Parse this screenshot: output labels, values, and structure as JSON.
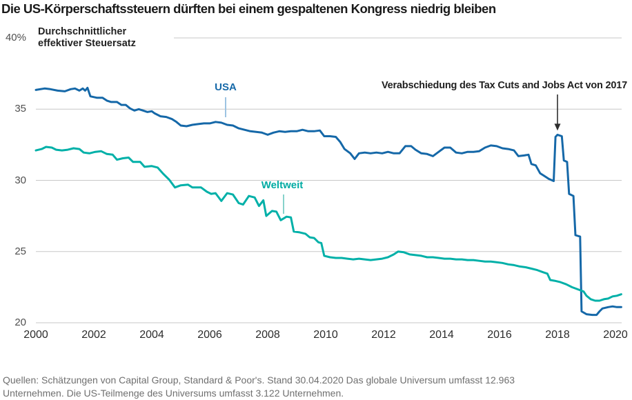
{
  "title": "Die US-Körperschaftssteuern dürften bei einem gespaltenen Kongress niedrig bleiben",
  "footer_lines": [
    "Quellen: Schätzungen von Capital Group, Standard & Poor's. Stand 30.04.2020 Das globale Universum umfasst 12.963",
    "Unternehmen. Die US-Teilmenge des Universums umfasst 3.122 Unternehmen."
  ],
  "colors": {
    "usa_line": "#1568a8",
    "world_line": "#00b0a8",
    "usa_label": "#1568a8",
    "world_label": "#00aba3",
    "usa_leader": "#9cc3e2",
    "world_leader": "#86d2cb",
    "grid": "#c7c7c7",
    "title_text": "#1a1a1a",
    "ytick_text": "#4f4f4f",
    "xtick_text": "#2b2b2b",
    "annotation_text": "#1f1f1f",
    "arrow": "#2e2e2e",
    "footer_text": "#6f6f6f"
  },
  "chart_data": {
    "type": "line",
    "title": "Die US-Körperschaftssteuern dürften bei einem gespaltenen Kongress niedrig bleiben",
    "xlabel": "",
    "ylabel": "Durchschnittlicher effektiver Steuersatz",
    "ylabel_lines": [
      "Durchschnittlicher",
      "effektiver Steuersatz"
    ],
    "xlim": [
      2000,
      2020.2
    ],
    "ylim": [
      20,
      40
    ],
    "grid": "horizontal",
    "legend_position": "inline-labels",
    "y_ticks": [
      {
        "value": 40,
        "label": "40%"
      },
      {
        "value": 35,
        "label": "35"
      },
      {
        "value": 30,
        "label": "30"
      },
      {
        "value": 25,
        "label": "25"
      },
      {
        "value": 20,
        "label": "20"
      }
    ],
    "x_ticks": [
      2000,
      2002,
      2004,
      2006,
      2008,
      2010,
      2012,
      2014,
      2016,
      2018,
      2020
    ],
    "annotation": {
      "text": "Verabschiedung des Tax Cuts and Jobs Act von 2017",
      "arrow_year": 2018,
      "points_to_value": 33.2
    },
    "series": [
      {
        "name": "USA",
        "color": "#1568a8",
        "points": [
          [
            2000.0,
            36.35
          ],
          [
            2000.3,
            36.45
          ],
          [
            2000.5,
            36.4
          ],
          [
            2000.75,
            36.3
          ],
          [
            2001.0,
            36.25
          ],
          [
            2001.2,
            36.4
          ],
          [
            2001.35,
            36.45
          ],
          [
            2001.5,
            36.3
          ],
          [
            2001.62,
            36.45
          ],
          [
            2001.7,
            36.3
          ],
          [
            2001.78,
            36.5
          ],
          [
            2001.88,
            35.9
          ],
          [
            2002.1,
            35.8
          ],
          [
            2002.3,
            35.8
          ],
          [
            2002.45,
            35.6
          ],
          [
            2002.6,
            35.5
          ],
          [
            2002.8,
            35.5
          ],
          [
            2002.95,
            35.3
          ],
          [
            2003.1,
            35.3
          ],
          [
            2003.25,
            35.05
          ],
          [
            2003.4,
            34.9
          ],
          [
            2003.55,
            35.0
          ],
          [
            2003.7,
            34.9
          ],
          [
            2003.85,
            34.8
          ],
          [
            2004.0,
            34.85
          ],
          [
            2004.1,
            34.7
          ],
          [
            2004.3,
            34.5
          ],
          [
            2004.5,
            34.45
          ],
          [
            2004.7,
            34.3
          ],
          [
            2004.85,
            34.1
          ],
          [
            2005.0,
            33.85
          ],
          [
            2005.2,
            33.8
          ],
          [
            2005.4,
            33.9
          ],
          [
            2005.6,
            33.95
          ],
          [
            2005.8,
            34.0
          ],
          [
            2006.0,
            34.0
          ],
          [
            2006.2,
            34.1
          ],
          [
            2006.4,
            34.05
          ],
          [
            2006.6,
            33.9
          ],
          [
            2006.8,
            33.85
          ],
          [
            2007.0,
            33.65
          ],
          [
            2007.2,
            33.55
          ],
          [
            2007.4,
            33.45
          ],
          [
            2007.6,
            33.4
          ],
          [
            2007.8,
            33.35
          ],
          [
            2008.0,
            33.2
          ],
          [
            2008.2,
            33.35
          ],
          [
            2008.4,
            33.45
          ],
          [
            2008.6,
            33.4
          ],
          [
            2008.8,
            33.45
          ],
          [
            2009.0,
            33.45
          ],
          [
            2009.2,
            33.55
          ],
          [
            2009.4,
            33.45
          ],
          [
            2009.6,
            33.45
          ],
          [
            2009.8,
            33.5
          ],
          [
            2009.95,
            33.1
          ],
          [
            2010.15,
            33.1
          ],
          [
            2010.35,
            33.05
          ],
          [
            2010.5,
            32.7
          ],
          [
            2010.65,
            32.2
          ],
          [
            2010.85,
            31.9
          ],
          [
            2011.0,
            31.5
          ],
          [
            2011.15,
            31.9
          ],
          [
            2011.35,
            31.95
          ],
          [
            2011.55,
            31.9
          ],
          [
            2011.75,
            31.95
          ],
          [
            2011.95,
            31.9
          ],
          [
            2012.15,
            32.0
          ],
          [
            2012.35,
            31.9
          ],
          [
            2012.55,
            31.9
          ],
          [
            2012.75,
            32.4
          ],
          [
            2012.95,
            32.4
          ],
          [
            2013.1,
            32.15
          ],
          [
            2013.3,
            31.9
          ],
          [
            2013.5,
            31.85
          ],
          [
            2013.7,
            31.7
          ],
          [
            2013.9,
            32.0
          ],
          [
            2014.1,
            32.3
          ],
          [
            2014.3,
            32.3
          ],
          [
            2014.5,
            31.95
          ],
          [
            2014.7,
            31.9
          ],
          [
            2014.9,
            32.0
          ],
          [
            2015.1,
            32.0
          ],
          [
            2015.3,
            32.05
          ],
          [
            2015.5,
            32.3
          ],
          [
            2015.7,
            32.45
          ],
          [
            2015.9,
            32.4
          ],
          [
            2016.1,
            32.25
          ],
          [
            2016.3,
            32.2
          ],
          [
            2016.5,
            32.1
          ],
          [
            2016.65,
            31.7
          ],
          [
            2016.85,
            31.75
          ],
          [
            2017.0,
            31.8
          ],
          [
            2017.1,
            31.15
          ],
          [
            2017.25,
            31.05
          ],
          [
            2017.4,
            30.5
          ],
          [
            2017.55,
            30.3
          ],
          [
            2017.7,
            30.1
          ],
          [
            2017.87,
            29.95
          ],
          [
            2017.93,
            33.05
          ],
          [
            2018.0,
            33.2
          ],
          [
            2018.15,
            33.1
          ],
          [
            2018.22,
            31.4
          ],
          [
            2018.33,
            31.3
          ],
          [
            2018.4,
            29.05
          ],
          [
            2018.55,
            28.9
          ],
          [
            2018.62,
            26.15
          ],
          [
            2018.78,
            26.05
          ],
          [
            2018.83,
            20.8
          ],
          [
            2019.0,
            20.6
          ],
          [
            2019.2,
            20.55
          ],
          [
            2019.35,
            20.55
          ],
          [
            2019.45,
            20.8
          ],
          [
            2019.55,
            21.0
          ],
          [
            2019.75,
            21.1
          ],
          [
            2019.9,
            21.15
          ],
          [
            2020.05,
            21.1
          ],
          [
            2020.2,
            21.1
          ]
        ]
      },
      {
        "name": "Weltweit",
        "color": "#00b0a8",
        "points": [
          [
            2000.0,
            32.1
          ],
          [
            2000.2,
            32.2
          ],
          [
            2000.35,
            32.35
          ],
          [
            2000.55,
            32.3
          ],
          [
            2000.7,
            32.15
          ],
          [
            2000.9,
            32.1
          ],
          [
            2001.1,
            32.15
          ],
          [
            2001.3,
            32.25
          ],
          [
            2001.5,
            32.2
          ],
          [
            2001.65,
            31.95
          ],
          [
            2001.85,
            31.9
          ],
          [
            2002.05,
            32.0
          ],
          [
            2002.25,
            32.05
          ],
          [
            2002.45,
            31.85
          ],
          [
            2002.65,
            31.8
          ],
          [
            2002.8,
            31.45
          ],
          [
            2003.0,
            31.55
          ],
          [
            2003.2,
            31.6
          ],
          [
            2003.35,
            31.3
          ],
          [
            2003.6,
            31.3
          ],
          [
            2003.75,
            30.95
          ],
          [
            2004.0,
            31.0
          ],
          [
            2004.2,
            30.9
          ],
          [
            2004.4,
            30.45
          ],
          [
            2004.6,
            30.05
          ],
          [
            2004.8,
            29.5
          ],
          [
            2005.0,
            29.65
          ],
          [
            2005.25,
            29.7
          ],
          [
            2005.4,
            29.5
          ],
          [
            2005.7,
            29.5
          ],
          [
            2005.9,
            29.2
          ],
          [
            2006.05,
            29.05
          ],
          [
            2006.2,
            29.1
          ],
          [
            2006.4,
            28.55
          ],
          [
            2006.6,
            29.1
          ],
          [
            2006.8,
            29.0
          ],
          [
            2007.0,
            28.4
          ],
          [
            2007.15,
            28.3
          ],
          [
            2007.35,
            28.9
          ],
          [
            2007.55,
            28.8
          ],
          [
            2007.7,
            28.2
          ],
          [
            2007.85,
            28.6
          ],
          [
            2007.95,
            27.5
          ],
          [
            2008.15,
            27.85
          ],
          [
            2008.3,
            27.8
          ],
          [
            2008.45,
            27.2
          ],
          [
            2008.65,
            27.45
          ],
          [
            2008.8,
            27.4
          ],
          [
            2008.9,
            26.4
          ],
          [
            2009.1,
            26.35
          ],
          [
            2009.3,
            26.25
          ],
          [
            2009.45,
            26.0
          ],
          [
            2009.6,
            25.95
          ],
          [
            2009.75,
            25.65
          ],
          [
            2009.85,
            25.6
          ],
          [
            2009.95,
            24.7
          ],
          [
            2010.15,
            24.6
          ],
          [
            2010.35,
            24.55
          ],
          [
            2010.55,
            24.55
          ],
          [
            2010.75,
            24.5
          ],
          [
            2010.95,
            24.45
          ],
          [
            2011.15,
            24.5
          ],
          [
            2011.35,
            24.45
          ],
          [
            2011.55,
            24.4
          ],
          [
            2011.75,
            24.45
          ],
          [
            2011.95,
            24.5
          ],
          [
            2012.15,
            24.6
          ],
          [
            2012.35,
            24.8
          ],
          [
            2012.5,
            25.0
          ],
          [
            2012.7,
            24.95
          ],
          [
            2012.9,
            24.8
          ],
          [
            2013.1,
            24.75
          ],
          [
            2013.3,
            24.7
          ],
          [
            2013.5,
            24.6
          ],
          [
            2013.7,
            24.6
          ],
          [
            2013.9,
            24.55
          ],
          [
            2014.1,
            24.5
          ],
          [
            2014.3,
            24.5
          ],
          [
            2014.5,
            24.45
          ],
          [
            2014.7,
            24.45
          ],
          [
            2014.9,
            24.4
          ],
          [
            2015.1,
            24.4
          ],
          [
            2015.3,
            24.35
          ],
          [
            2015.5,
            24.3
          ],
          [
            2015.7,
            24.3
          ],
          [
            2015.9,
            24.25
          ],
          [
            2016.1,
            24.2
          ],
          [
            2016.3,
            24.1
          ],
          [
            2016.5,
            24.05
          ],
          [
            2016.7,
            23.95
          ],
          [
            2016.9,
            23.9
          ],
          [
            2017.1,
            23.8
          ],
          [
            2017.3,
            23.7
          ],
          [
            2017.5,
            23.55
          ],
          [
            2017.65,
            23.45
          ],
          [
            2017.75,
            23.0
          ],
          [
            2017.9,
            22.95
          ],
          [
            2018.1,
            22.85
          ],
          [
            2018.3,
            22.7
          ],
          [
            2018.5,
            22.5
          ],
          [
            2018.7,
            22.35
          ],
          [
            2018.9,
            22.2
          ],
          [
            2019.0,
            21.9
          ],
          [
            2019.15,
            21.65
          ],
          [
            2019.3,
            21.55
          ],
          [
            2019.45,
            21.55
          ],
          [
            2019.6,
            21.65
          ],
          [
            2019.75,
            21.7
          ],
          [
            2019.9,
            21.85
          ],
          [
            2020.05,
            21.9
          ],
          [
            2020.2,
            22.0
          ]
        ]
      }
    ]
  }
}
